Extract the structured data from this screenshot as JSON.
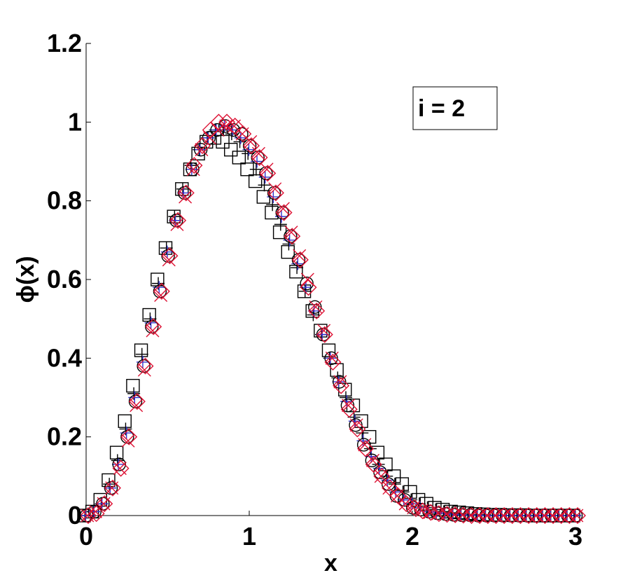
{
  "chart_data": {
    "type": "scatter",
    "title": "",
    "xlabel": "x",
    "ylabel": "ϕ(x)",
    "xlim": [
      0,
      3
    ],
    "ylim": [
      0,
      1.2
    ],
    "x_ticks": [
      "0",
      "1",
      "2",
      "3"
    ],
    "y_ticks": [
      "0",
      "0.2",
      "0.4",
      "0.6",
      "0.8",
      "1",
      "1.2"
    ],
    "grid": false,
    "annotation": "i = 2",
    "annotation_position": "top-right",
    "x": [
      0,
      0.05,
      0.1,
      0.15,
      0.2,
      0.25,
      0.3,
      0.35,
      0.4,
      0.45,
      0.5,
      0.55,
      0.6,
      0.65,
      0.7,
      0.75,
      0.8,
      0.85,
      0.9,
      0.95,
      1.0,
      1.05,
      1.1,
      1.15,
      1.2,
      1.25,
      1.3,
      1.35,
      1.4,
      1.45,
      1.5,
      1.55,
      1.6,
      1.65,
      1.7,
      1.75,
      1.8,
      1.85,
      1.9,
      1.95,
      2.0,
      2.05,
      2.1,
      2.15,
      2.2,
      2.25,
      2.3,
      2.35,
      2.4,
      2.45,
      2.5,
      2.55,
      2.6,
      2.65,
      2.7,
      2.75,
      2.8,
      2.85,
      2.9,
      2.95,
      3.0
    ],
    "series": [
      {
        "marker": "square",
        "color": "#000000",
        "values": [
          0.0,
          0.01,
          0.04,
          0.09,
          0.16,
          0.24,
          0.33,
          0.42,
          0.51,
          0.6,
          0.68,
          0.76,
          0.83,
          0.88,
          0.92,
          0.95,
          0.96,
          0.95,
          0.93,
          0.91,
          0.88,
          0.85,
          0.81,
          0.77,
          0.72,
          0.67,
          0.62,
          0.57,
          0.52,
          0.47,
          0.42,
          0.37,
          0.32,
          0.28,
          0.24,
          0.2,
          0.16,
          0.13,
          0.1,
          0.08,
          0.06,
          0.04,
          0.03,
          0.02,
          0.015,
          0.01,
          0.008,
          0.006,
          0.004,
          0.003,
          0.002,
          0.002,
          0.001,
          0.001,
          0.001,
          0.0,
          0.0,
          0.0,
          0.0,
          0.0,
          0.0
        ]
      },
      {
        "marker": "plus",
        "color": "#000000",
        "values": [
          0.0,
          0.01,
          0.03,
          0.08,
          0.14,
          0.22,
          0.31,
          0.41,
          0.5,
          0.59,
          0.68,
          0.76,
          0.83,
          0.89,
          0.93,
          0.96,
          0.98,
          0.98,
          0.97,
          0.95,
          0.92,
          0.88,
          0.84,
          0.79,
          0.74,
          0.69,
          0.63,
          0.57,
          0.51,
          0.46,
          0.4,
          0.35,
          0.3,
          0.25,
          0.21,
          0.17,
          0.13,
          0.1,
          0.08,
          0.06,
          0.04,
          0.03,
          0.02,
          0.015,
          0.01,
          0.007,
          0.005,
          0.003,
          0.002,
          0.002,
          0.001,
          0.001,
          0.0,
          0.0,
          0.0,
          0.0,
          0.0,
          0.0,
          0.0,
          0.0,
          0.0
        ]
      },
      {
        "marker": "plus",
        "color": "#3333cc",
        "values": [
          0.0,
          0.01,
          0.03,
          0.07,
          0.13,
          0.21,
          0.3,
          0.39,
          0.49,
          0.58,
          0.67,
          0.75,
          0.82,
          0.88,
          0.93,
          0.96,
          0.98,
          0.99,
          0.98,
          0.96,
          0.93,
          0.9,
          0.86,
          0.81,
          0.76,
          0.7,
          0.64,
          0.58,
          0.52,
          0.46,
          0.4,
          0.34,
          0.29,
          0.24,
          0.19,
          0.15,
          0.12,
          0.09,
          0.06,
          0.04,
          0.03,
          0.02,
          0.01,
          0.008,
          0.005,
          0.003,
          0.002,
          0.001,
          0.001,
          0.0,
          0.0,
          0.0,
          0.0,
          0.0,
          0.0,
          0.0,
          0.0,
          0.0,
          0.0,
          0.0,
          0.0
        ]
      },
      {
        "marker": "circle",
        "color": "#000000",
        "values": [
          0.0,
          0.01,
          0.03,
          0.07,
          0.13,
          0.2,
          0.29,
          0.38,
          0.48,
          0.57,
          0.66,
          0.75,
          0.82,
          0.88,
          0.93,
          0.96,
          0.98,
          0.99,
          0.98,
          0.97,
          0.94,
          0.91,
          0.87,
          0.82,
          0.77,
          0.71,
          0.65,
          0.59,
          0.53,
          0.46,
          0.4,
          0.34,
          0.28,
          0.23,
          0.18,
          0.14,
          0.11,
          0.08,
          0.05,
          0.04,
          0.02,
          0.015,
          0.01,
          0.006,
          0.004,
          0.002,
          0.001,
          0.001,
          0.0,
          0.0,
          0.0,
          0.0,
          0.0,
          0.0,
          0.0,
          0.0,
          0.0,
          0.0,
          0.0,
          0.0,
          0.0
        ]
      },
      {
        "marker": "x",
        "color": "#dd1133",
        "values": [
          0.0,
          0.01,
          0.03,
          0.07,
          0.12,
          0.19,
          0.28,
          0.37,
          0.47,
          0.56,
          0.65,
          0.74,
          0.81,
          0.88,
          0.93,
          0.96,
          0.98,
          0.99,
          0.99,
          0.97,
          0.95,
          0.92,
          0.88,
          0.83,
          0.78,
          0.72,
          0.66,
          0.6,
          0.53,
          0.47,
          0.4,
          0.34,
          0.28,
          0.23,
          0.18,
          0.14,
          0.1,
          0.07,
          0.05,
          0.03,
          0.02,
          0.013,
          0.008,
          0.005,
          0.003,
          0.002,
          0.001,
          0.0,
          0.0,
          0.0,
          0.0,
          0.0,
          0.0,
          0.0,
          0.0,
          0.0,
          0.0,
          0.0,
          0.0,
          0.0,
          0.0
        ]
      },
      {
        "marker": "diamond",
        "color": "#dd1133",
        "values": [
          0.0,
          0.005,
          0.03,
          0.07,
          0.12,
          0.2,
          0.29,
          0.38,
          0.48,
          0.57,
          0.66,
          0.75,
          0.82,
          0.89,
          0.94,
          0.98,
          1.0,
          1.0,
          0.99,
          0.97,
          0.94,
          0.91,
          0.87,
          0.82,
          0.77,
          0.71,
          0.65,
          0.58,
          0.52,
          0.46,
          0.39,
          0.33,
          0.27,
          0.22,
          0.17,
          0.13,
          0.1,
          0.07,
          0.05,
          0.03,
          0.02,
          0.012,
          0.008,
          0.005,
          0.003,
          0.002,
          0.001,
          0.0,
          0.0,
          0.0,
          0.0,
          0.0,
          0.0,
          0.0,
          0.0,
          0.0,
          0.0,
          0.0,
          0.0,
          0.0,
          0.0
        ]
      }
    ]
  }
}
